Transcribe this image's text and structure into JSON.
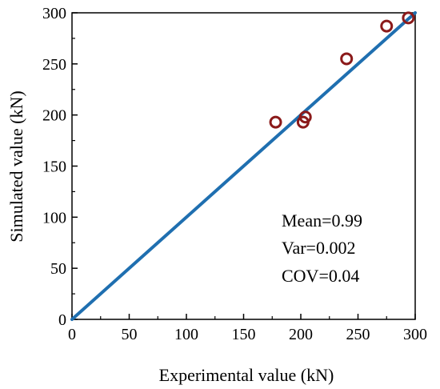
{
  "chart_data": {
    "type": "scatter",
    "title": "",
    "xlabel": "Experimental value (kN)",
    "ylabel": "Simulated value (kN)",
    "xlim": [
      0,
      300
    ],
    "ylim": [
      0,
      300
    ],
    "xticks": [
      0,
      50,
      100,
      150,
      200,
      250,
      300
    ],
    "yticks": [
      0,
      50,
      100,
      150,
      200,
      250,
      300
    ],
    "grid": false,
    "reference_line": {
      "x": [
        0,
        300
      ],
      "y": [
        0,
        300
      ],
      "color": "#1f6fb0"
    },
    "series": [
      {
        "marker": "open-circle",
        "color": "#8b1a1a",
        "points": [
          {
            "x": 178,
            "y": 193
          },
          {
            "x": 202,
            "y": 193
          },
          {
            "x": 204,
            "y": 198
          },
          {
            "x": 240,
            "y": 255
          },
          {
            "x": 275,
            "y": 287
          },
          {
            "x": 294,
            "y": 295
          }
        ]
      }
    ],
    "annotations": [
      "Mean=0.99",
      "Var=0.002",
      "COV=0.04"
    ]
  }
}
